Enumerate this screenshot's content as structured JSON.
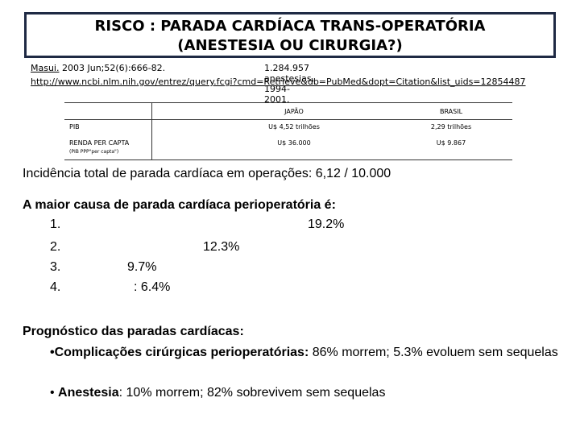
{
  "title": {
    "line1": "RISCO : PARADA CARDÍACA TRANS-OPERATÓRIA",
    "line2": "(ANESTESIA OU CIRURGIA?)"
  },
  "reference": {
    "journal_link": "Masui.",
    "citation": " 2003 Jun;52(6):666-82.",
    "anesthesias": "1.284.957 anestesias, 1994- 2001.",
    "url": "http://www.ncbi.nlm.nih.gov/entrez/query.fcgi?cmd=Retrieve&db=PubMed&dopt=Citation&list_uids=12854487"
  },
  "gdp_table": {
    "headers": [
      "",
      "JAPÃO",
      "BRASIL"
    ],
    "rows": [
      {
        "label": "PIB",
        "sublabel": "",
        "japan": "U$ 4,52 trilhões",
        "brazil": "2,29 trilhões"
      },
      {
        "label": "RENDA PER CAPTA",
        "sublabel": "(PIB PPP\"per capta\")",
        "japan": "U$ 36.000",
        "brazil": "U$ 9.867"
      }
    ]
  },
  "incidence": "Incidência total de parada cardíaca em operações: 6,12 / 10.000",
  "major_cause": {
    "heading": "A maior causa de parada cardíaca perioperatória é:",
    "items": [
      {
        "num": "1.",
        "value": "19.2%"
      },
      {
        "num": "2.",
        "value": "12.3%"
      },
      {
        "num": "3.",
        "value": "9.7%"
      },
      {
        "num": "4.",
        "value": ": 6.4%"
      }
    ]
  },
  "prognosis": {
    "heading": "Prognóstico das paradas cardíacas:",
    "bullet1_bold": "•Complicações cirúrgicas perioperatórias:",
    "bullet1_rest": " 86% morrem; 5.3% evoluem sem sequelas",
    "bullet2_prefix": "• ",
    "bullet2_bold": "Anestesia",
    "bullet2_rest": ": 10% morrem; 82% sobrevivem sem sequelas"
  }
}
